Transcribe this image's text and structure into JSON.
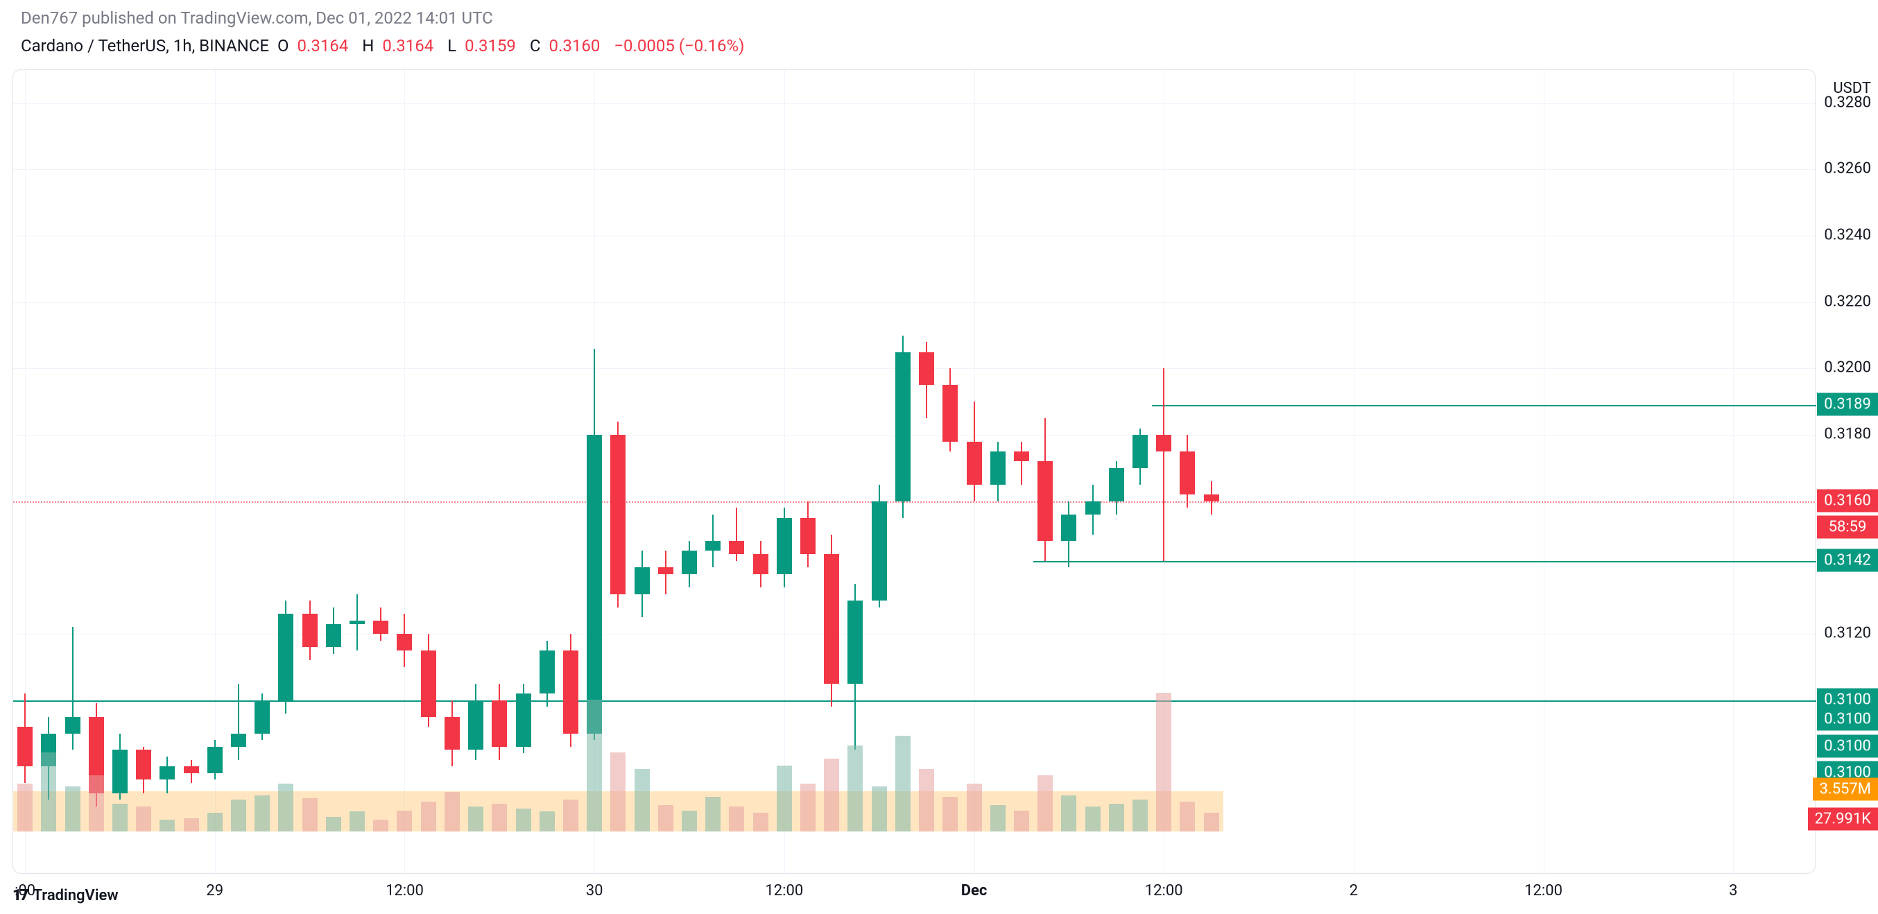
{
  "header": {
    "publish_text": "Den767 published on TradingView.com, Dec 01, 2022 14:01 UTC"
  },
  "info": {
    "symbol": "Cardano / TetherUS, 1h, BINANCE",
    "O": "0.3164",
    "H": "0.3164",
    "L": "0.3159",
    "C": "0.3160",
    "change": "−0.0005 (−0.16%)"
  },
  "axis": {
    "currency": "USDT",
    "ymin": 0.306,
    "ymax": 0.329,
    "yticks": [
      {
        "v": 0.328,
        "label": "0.3280"
      },
      {
        "v": 0.326,
        "label": "0.3260"
      },
      {
        "v": 0.324,
        "label": "0.3240"
      },
      {
        "v": 0.322,
        "label": "0.3220"
      },
      {
        "v": 0.32,
        "label": "0.3200"
      },
      {
        "v": 0.318,
        "label": "0.3180"
      },
      {
        "v": 0.312,
        "label": "0.3120"
      }
    ],
    "xlabels": [
      {
        "idx": 0,
        "label": ":00"
      },
      {
        "idx": 8,
        "label": "29"
      },
      {
        "idx": 16,
        "label": "12:00"
      },
      {
        "idx": 24,
        "label": "30"
      },
      {
        "idx": 32,
        "label": "12:00"
      },
      {
        "idx": 40,
        "label": "Dec",
        "bold": true
      },
      {
        "idx": 48,
        "label": "12:00"
      },
      {
        "idx": 56,
        "label": "2"
      },
      {
        "idx": 64,
        "label": "12:00"
      },
      {
        "idx": 72,
        "label": "3"
      }
    ],
    "total_slots": 76
  },
  "hlines": [
    {
      "v": 0.3189,
      "label": "0.3189",
      "color": "#089981",
      "from_idx": 48,
      "to_end": true
    },
    {
      "v": 0.3142,
      "label": "0.3142",
      "color": "#089981",
      "from_idx": 43,
      "to_end": true
    },
    {
      "v": 0.31,
      "label": "0.3100",
      "color": "#089981",
      "from_idx": 0,
      "to_end": true
    }
  ],
  "price_tags": [
    {
      "v": 0.3189,
      "label": "0.3189",
      "bg": "#089981"
    },
    {
      "v": 0.316,
      "label": "0.3160",
      "bg": "#f23645"
    },
    {
      "v": 0.3152,
      "label": "58:59",
      "bg": "#f23645"
    },
    {
      "v": 0.3142,
      "label": "0.3142",
      "bg": "#089981"
    },
    {
      "v": 0.31,
      "label": "0.3100",
      "bg": "#089981"
    },
    {
      "v": 0.3094,
      "label": "0.3100",
      "bg": "#089981"
    },
    {
      "v": 0.3086,
      "label": "0.3100",
      "bg": "#089981"
    },
    {
      "v": 0.3078,
      "label": "0.3100",
      "bg": "#089981"
    }
  ],
  "extra_tags": [
    {
      "v": 0.3073,
      "label": "3.557M",
      "bg": "#ff9800"
    },
    {
      "v": 0.3064,
      "label": "27.991K",
      "bg": "#f23645"
    }
  ],
  "current_price_line": 0.316,
  "colors": {
    "up": "#089981",
    "down": "#f23645",
    "vol_up": "#7db8a8",
    "vol_down": "#e8a0a0"
  },
  "candle_width": 22,
  "candles": [
    {
      "o": 0.3092,
      "h": 0.3102,
      "l": 0.3075,
      "c": 0.308,
      "v": 72
    },
    {
      "o": 0.308,
      "h": 0.3095,
      "l": 0.307,
      "c": 0.309,
      "v": 120
    },
    {
      "o": 0.309,
      "h": 0.3122,
      "l": 0.3085,
      "c": 0.3095,
      "v": 68
    },
    {
      "o": 0.3095,
      "h": 0.3099,
      "l": 0.3068,
      "c": 0.3072,
      "v": 85
    },
    {
      "o": 0.3072,
      "h": 0.309,
      "l": 0.307,
      "c": 0.3085,
      "v": 42
    },
    {
      "o": 0.3085,
      "h": 0.3086,
      "l": 0.3072,
      "c": 0.3076,
      "v": 38
    },
    {
      "o": 0.3076,
      "h": 0.3083,
      "l": 0.3072,
      "c": 0.308,
      "v": 18
    },
    {
      "o": 0.308,
      "h": 0.3082,
      "l": 0.3075,
      "c": 0.3078,
      "v": 20
    },
    {
      "o": 0.3078,
      "h": 0.3088,
      "l": 0.3076,
      "c": 0.3086,
      "v": 28
    },
    {
      "o": 0.3086,
      "h": 0.3105,
      "l": 0.3082,
      "c": 0.309,
      "v": 48
    },
    {
      "o": 0.309,
      "h": 0.3102,
      "l": 0.3088,
      "c": 0.31,
      "v": 55
    },
    {
      "o": 0.31,
      "h": 0.313,
      "l": 0.3096,
      "c": 0.3126,
      "v": 72
    },
    {
      "o": 0.3126,
      "h": 0.313,
      "l": 0.3112,
      "c": 0.3116,
      "v": 50
    },
    {
      "o": 0.3116,
      "h": 0.3128,
      "l": 0.3114,
      "c": 0.3123,
      "v": 22
    },
    {
      "o": 0.3123,
      "h": 0.3132,
      "l": 0.3115,
      "c": 0.3124,
      "v": 30
    },
    {
      "o": 0.3124,
      "h": 0.3128,
      "l": 0.3118,
      "c": 0.312,
      "v": 18
    },
    {
      "o": 0.312,
      "h": 0.3126,
      "l": 0.311,
      "c": 0.3115,
      "v": 32
    },
    {
      "o": 0.3115,
      "h": 0.312,
      "l": 0.3092,
      "c": 0.3095,
      "v": 45
    },
    {
      "o": 0.3095,
      "h": 0.31,
      "l": 0.308,
      "c": 0.3085,
      "v": 60
    },
    {
      "o": 0.3085,
      "h": 0.3105,
      "l": 0.3082,
      "c": 0.31,
      "v": 38
    },
    {
      "o": 0.31,
      "h": 0.3105,
      "l": 0.3082,
      "c": 0.3086,
      "v": 42
    },
    {
      "o": 0.3086,
      "h": 0.3105,
      "l": 0.3084,
      "c": 0.3102,
      "v": 35
    },
    {
      "o": 0.3102,
      "h": 0.3118,
      "l": 0.3098,
      "c": 0.3115,
      "v": 30
    },
    {
      "o": 0.3115,
      "h": 0.312,
      "l": 0.3086,
      "c": 0.309,
      "v": 48
    },
    {
      "o": 0.309,
      "h": 0.3206,
      "l": 0.3088,
      "c": 0.318,
      "v": 200
    },
    {
      "o": 0.318,
      "h": 0.3184,
      "l": 0.3128,
      "c": 0.3132,
      "v": 120
    },
    {
      "o": 0.3132,
      "h": 0.3145,
      "l": 0.3125,
      "c": 0.314,
      "v": 95
    },
    {
      "o": 0.314,
      "h": 0.3145,
      "l": 0.3132,
      "c": 0.3138,
      "v": 40
    },
    {
      "o": 0.3138,
      "h": 0.3148,
      "l": 0.3134,
      "c": 0.3145,
      "v": 32
    },
    {
      "o": 0.3145,
      "h": 0.3156,
      "l": 0.314,
      "c": 0.3148,
      "v": 52
    },
    {
      "o": 0.3148,
      "h": 0.3158,
      "l": 0.3142,
      "c": 0.3144,
      "v": 38
    },
    {
      "o": 0.3144,
      "h": 0.3148,
      "l": 0.3134,
      "c": 0.3138,
      "v": 28
    },
    {
      "o": 0.3138,
      "h": 0.3158,
      "l": 0.3134,
      "c": 0.3155,
      "v": 100
    },
    {
      "o": 0.3155,
      "h": 0.316,
      "l": 0.314,
      "c": 0.3144,
      "v": 72
    },
    {
      "o": 0.3144,
      "h": 0.315,
      "l": 0.3098,
      "c": 0.3105,
      "v": 110
    },
    {
      "o": 0.3105,
      "h": 0.3135,
      "l": 0.3085,
      "c": 0.313,
      "v": 130
    },
    {
      "o": 0.313,
      "h": 0.3165,
      "l": 0.3128,
      "c": 0.316,
      "v": 68
    },
    {
      "o": 0.316,
      "h": 0.321,
      "l": 0.3155,
      "c": 0.3205,
      "v": 145
    },
    {
      "o": 0.3205,
      "h": 0.3208,
      "l": 0.3185,
      "c": 0.3195,
      "v": 95
    },
    {
      "o": 0.3195,
      "h": 0.32,
      "l": 0.3175,
      "c": 0.3178,
      "v": 52
    },
    {
      "o": 0.3178,
      "h": 0.319,
      "l": 0.316,
      "c": 0.3165,
      "v": 72
    },
    {
      "o": 0.3165,
      "h": 0.3178,
      "l": 0.316,
      "c": 0.3175,
      "v": 40
    },
    {
      "o": 0.3175,
      "h": 0.3178,
      "l": 0.3165,
      "c": 0.3172,
      "v": 32
    },
    {
      "o": 0.3172,
      "h": 0.3185,
      "l": 0.3142,
      "c": 0.3148,
      "v": 85
    },
    {
      "o": 0.3148,
      "h": 0.316,
      "l": 0.314,
      "c": 0.3156,
      "v": 55
    },
    {
      "o": 0.3156,
      "h": 0.3165,
      "l": 0.315,
      "c": 0.316,
      "v": 38
    },
    {
      "o": 0.316,
      "h": 0.3172,
      "l": 0.3156,
      "c": 0.317,
      "v": 42
    },
    {
      "o": 0.317,
      "h": 0.3182,
      "l": 0.3165,
      "c": 0.318,
      "v": 48
    },
    {
      "o": 0.318,
      "h": 0.32,
      "l": 0.3142,
      "c": 0.3175,
      "v": 210
    },
    {
      "o": 0.3175,
      "h": 0.318,
      "l": 0.3158,
      "c": 0.3162,
      "v": 45
    },
    {
      "o": 0.3162,
      "h": 0.3166,
      "l": 0.3156,
      "c": 0.316,
      "v": 28
    }
  ],
  "footer": {
    "brand": "TradingView"
  }
}
